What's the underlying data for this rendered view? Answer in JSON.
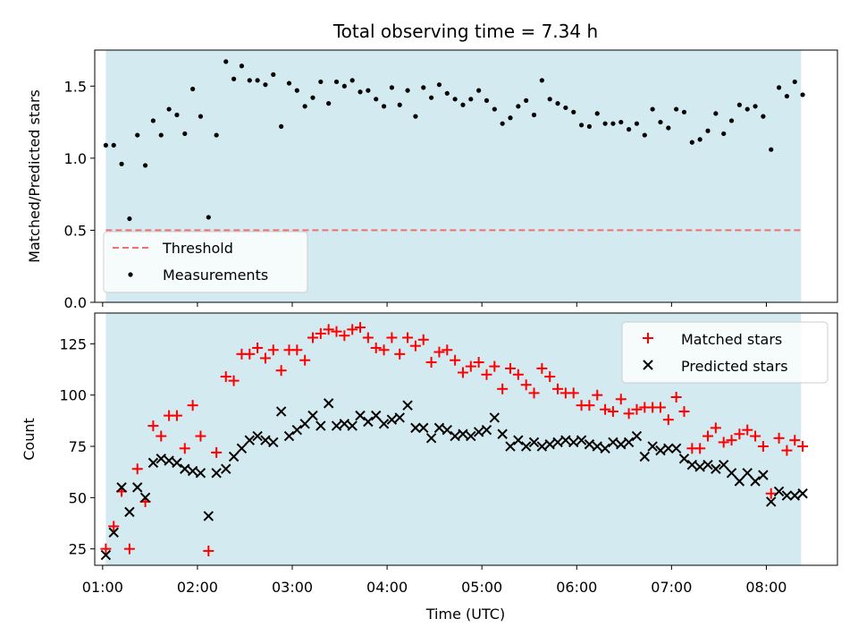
{
  "chart_data": [
    {
      "type": "scatter",
      "title": "Total observing time = 7.34 h",
      "xlabel": "",
      "ylabel": "Matched/Predicted stars",
      "xlim": [
        "00:55",
        "08:45"
      ],
      "ylim": [
        0,
        1.75
      ],
      "yticks": [
        0.0,
        0.5,
        1.0,
        1.5
      ],
      "ytick_labels": [
        "0.0",
        "0.5",
        "1.0",
        "1.5"
      ],
      "shaded_span": [
        "01:02",
        "08:22"
      ],
      "shade_color": "#d3eaf0",
      "threshold": 0.5,
      "threshold_color": "#f07070",
      "legend": {
        "placement": "lower-left",
        "entries": [
          "Threshold",
          "Measurements"
        ]
      },
      "series": [
        {
          "name": "Measurements",
          "marker": "dot",
          "color": "#000000",
          "x": [
            "01:02",
            "01:07",
            "01:12",
            "01:17",
            "01:22",
            "01:27",
            "01:32",
            "01:37",
            "01:42",
            "01:47",
            "01:52",
            "01:57",
            "02:02",
            "02:07",
            "02:12",
            "02:18",
            "02:23",
            "02:28",
            "02:33",
            "02:38",
            "02:43",
            "02:48",
            "02:53",
            "02:58",
            "03:03",
            "03:08",
            "03:13",
            "03:18",
            "03:23",
            "03:28",
            "03:33",
            "03:38",
            "03:43",
            "03:48",
            "03:53",
            "03:58",
            "04:03",
            "04:08",
            "04:13",
            "04:18",
            "04:23",
            "04:28",
            "04:33",
            "04:38",
            "04:43",
            "04:48",
            "04:53",
            "04:58",
            "05:03",
            "05:08",
            "05:13",
            "05:18",
            "05:23",
            "05:28",
            "05:33",
            "05:38",
            "05:43",
            "05:48",
            "05:53",
            "05:58",
            "06:03",
            "06:08",
            "06:13",
            "06:18",
            "06:23",
            "06:28",
            "06:33",
            "06:38",
            "06:43",
            "06:48",
            "06:53",
            "06:58",
            "07:03",
            "07:08",
            "07:13",
            "07:18",
            "07:23",
            "07:28",
            "07:33",
            "07:38",
            "07:43",
            "07:48",
            "07:53",
            "07:58",
            "08:03",
            "08:08",
            "08:13",
            "08:18",
            "08:23"
          ],
          "y": [
            1.09,
            1.09,
            0.96,
            0.58,
            1.16,
            0.95,
            1.26,
            1.16,
            1.34,
            1.3,
            1.17,
            1.48,
            1.29,
            0.59,
            1.16,
            1.67,
            1.55,
            1.64,
            1.54,
            1.54,
            1.51,
            1.58,
            1.22,
            1.52,
            1.47,
            1.36,
            1.42,
            1.53,
            1.38,
            1.53,
            1.5,
            1.54,
            1.46,
            1.47,
            1.41,
            1.36,
            1.49,
            1.37,
            1.47,
            1.29,
            1.49,
            1.42,
            1.51,
            1.45,
            1.41,
            1.37,
            1.41,
            1.47,
            1.4,
            1.34,
            1.24,
            1.28,
            1.36,
            1.4,
            1.3,
            1.54,
            1.41,
            1.38,
            1.35,
            1.32,
            1.23,
            1.22,
            1.31,
            1.24,
            1.24,
            1.25,
            1.2,
            1.24,
            1.16,
            1.34,
            1.25,
            1.21,
            1.34,
            1.32,
            1.11,
            1.13,
            1.19,
            1.31,
            1.17,
            1.26,
            1.37,
            1.34,
            1.36,
            1.29,
            1.06,
            1.49,
            1.43,
            1.53,
            1.44
          ]
        }
      ]
    },
    {
      "type": "scatter",
      "title": "",
      "xlabel": "Time (UTC)",
      "ylabel": "Count",
      "xlim": [
        "00:55",
        "08:45"
      ],
      "ylim": [
        17,
        140
      ],
      "yticks": [
        25,
        50,
        75,
        100,
        125
      ],
      "ytick_labels": [
        "25",
        "50",
        "75",
        "100",
        "125"
      ],
      "xticks": [
        "01:00",
        "02:00",
        "03:00",
        "04:00",
        "05:00",
        "06:00",
        "07:00",
        "08:00"
      ],
      "xtick_labels": [
        "01:00",
        "02:00",
        "03:00",
        "04:00",
        "05:00",
        "06:00",
        "07:00",
        "08:00"
      ],
      "shaded_span": [
        "01:02",
        "08:22"
      ],
      "shade_color": "#d3eaf0",
      "legend": {
        "placement": "top-right",
        "entries": [
          "Matched stars",
          "Predicted stars"
        ]
      },
      "series": [
        {
          "name": "Matched stars",
          "marker": "plus",
          "color": "#ff0000",
          "x": [
            "01:02",
            "01:07",
            "01:12",
            "01:17",
            "01:22",
            "01:27",
            "01:32",
            "01:37",
            "01:42",
            "01:47",
            "01:52",
            "01:57",
            "02:02",
            "02:07",
            "02:12",
            "02:18",
            "02:23",
            "02:28",
            "02:33",
            "02:38",
            "02:43",
            "02:48",
            "02:53",
            "02:58",
            "03:03",
            "03:08",
            "03:13",
            "03:18",
            "03:23",
            "03:28",
            "03:33",
            "03:38",
            "03:43",
            "03:48",
            "03:53",
            "03:58",
            "04:03",
            "04:08",
            "04:13",
            "04:18",
            "04:23",
            "04:28",
            "04:33",
            "04:38",
            "04:43",
            "04:48",
            "04:53",
            "04:58",
            "05:03",
            "05:08",
            "05:13",
            "05:18",
            "05:23",
            "05:28",
            "05:33",
            "05:38",
            "05:43",
            "05:48",
            "05:53",
            "05:58",
            "06:03",
            "06:08",
            "06:13",
            "06:18",
            "06:23",
            "06:28",
            "06:33",
            "06:38",
            "06:43",
            "06:48",
            "06:53",
            "06:58",
            "07:03",
            "07:08",
            "07:13",
            "07:18",
            "07:23",
            "07:28",
            "07:33",
            "07:38",
            "07:43",
            "07:48",
            "07:53",
            "07:58",
            "08:03",
            "08:08",
            "08:13",
            "08:18",
            "08:23"
          ],
          "y": [
            25,
            36,
            53,
            25,
            64,
            48,
            85,
            80,
            90,
            90,
            74,
            95,
            80,
            24,
            72,
            109,
            107,
            120,
            120,
            123,
            118,
            122,
            112,
            122,
            122,
            117,
            128,
            130,
            132,
            131,
            129,
            132,
            133,
            128,
            123,
            122,
            128,
            120,
            128,
            124,
            127,
            116,
            121,
            122,
            117,
            111,
            114,
            116,
            110,
            114,
            103,
            113,
            110,
            105,
            101,
            113,
            109,
            103,
            101,
            101,
            95,
            95,
            100,
            93,
            92,
            98,
            91,
            93,
            94,
            94,
            94,
            88,
            99,
            92,
            74,
            74,
            80,
            84,
            77,
            78,
            81,
            83,
            80,
            75,
            52,
            79,
            73,
            78,
            75
          ]
        },
        {
          "name": "Predicted stars",
          "marker": "x",
          "color": "#000000",
          "x": [
            "01:02",
            "01:07",
            "01:12",
            "01:17",
            "01:22",
            "01:27",
            "01:32",
            "01:37",
            "01:42",
            "01:47",
            "01:52",
            "01:57",
            "02:02",
            "02:07",
            "02:12",
            "02:18",
            "02:23",
            "02:28",
            "02:33",
            "02:38",
            "02:43",
            "02:48",
            "02:53",
            "02:58",
            "03:03",
            "03:08",
            "03:13",
            "03:18",
            "03:23",
            "03:28",
            "03:33",
            "03:38",
            "03:43",
            "03:48",
            "03:53",
            "03:58",
            "04:03",
            "04:08",
            "04:13",
            "04:18",
            "04:23",
            "04:28",
            "04:33",
            "04:38",
            "04:43",
            "04:48",
            "04:53",
            "04:58",
            "05:03",
            "05:08",
            "05:13",
            "05:18",
            "05:23",
            "05:28",
            "05:33",
            "05:38",
            "05:43",
            "05:48",
            "05:53",
            "05:58",
            "06:03",
            "06:08",
            "06:13",
            "06:18",
            "06:23",
            "06:28",
            "06:33",
            "06:38",
            "06:43",
            "06:48",
            "06:53",
            "06:58",
            "07:03",
            "07:08",
            "07:13",
            "07:18",
            "07:23",
            "07:28",
            "07:33",
            "07:38",
            "07:43",
            "07:48",
            "07:53",
            "07:58",
            "08:03",
            "08:08",
            "08:13",
            "08:18",
            "08:23"
          ],
          "y": [
            22,
            33,
            55,
            43,
            55,
            50,
            67,
            69,
            68,
            67,
            64,
            63,
            62,
            41,
            62,
            64,
            70,
            74,
            78,
            80,
            78,
            77,
            92,
            80,
            83,
            86,
            90,
            85,
            96,
            85,
            86,
            85,
            90,
            87,
            90,
            86,
            88,
            89,
            95,
            84,
            84,
            79,
            84,
            83,
            80,
            81,
            80,
            82,
            83,
            89,
            81,
            75,
            78,
            75,
            77,
            75,
            76,
            77,
            78,
            77,
            78,
            76,
            75,
            74,
            77,
            76,
            77,
            80,
            70,
            75,
            73,
            74,
            74,
            69,
            66,
            65,
            66,
            64,
            66,
            62,
            58,
            62,
            58,
            61,
            48,
            53,
            51,
            51,
            52
          ]
        }
      ]
    }
  ]
}
